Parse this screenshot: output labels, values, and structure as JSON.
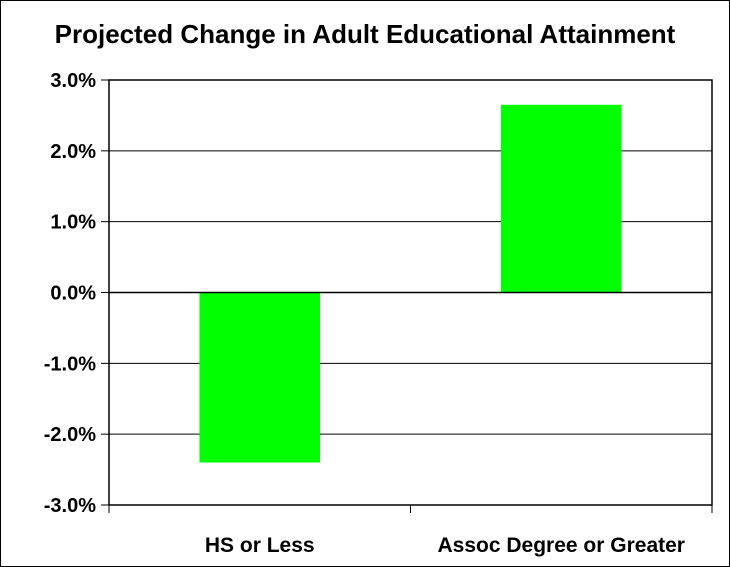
{
  "chart_data": {
    "type": "bar",
    "title": "Projected Change in Adult Educational Attainment",
    "xlabel": "",
    "ylabel": "",
    "categories": [
      "HS or Less",
      "Assoc Degree or Greater"
    ],
    "values": [
      -2.4,
      2.65
    ],
    "ylim": [
      -3.0,
      3.0
    ],
    "yticks": [
      -3.0,
      -2.0,
      -1.0,
      0.0,
      1.0,
      2.0,
      3.0
    ],
    "ytick_labels": [
      "-3.0%",
      "-2.0%",
      "-1.0%",
      "0.0%",
      "1.0%",
      "2.0%",
      "3.0%"
    ],
    "grid": true,
    "legend": "none",
    "bar_color": "#00ff00"
  }
}
